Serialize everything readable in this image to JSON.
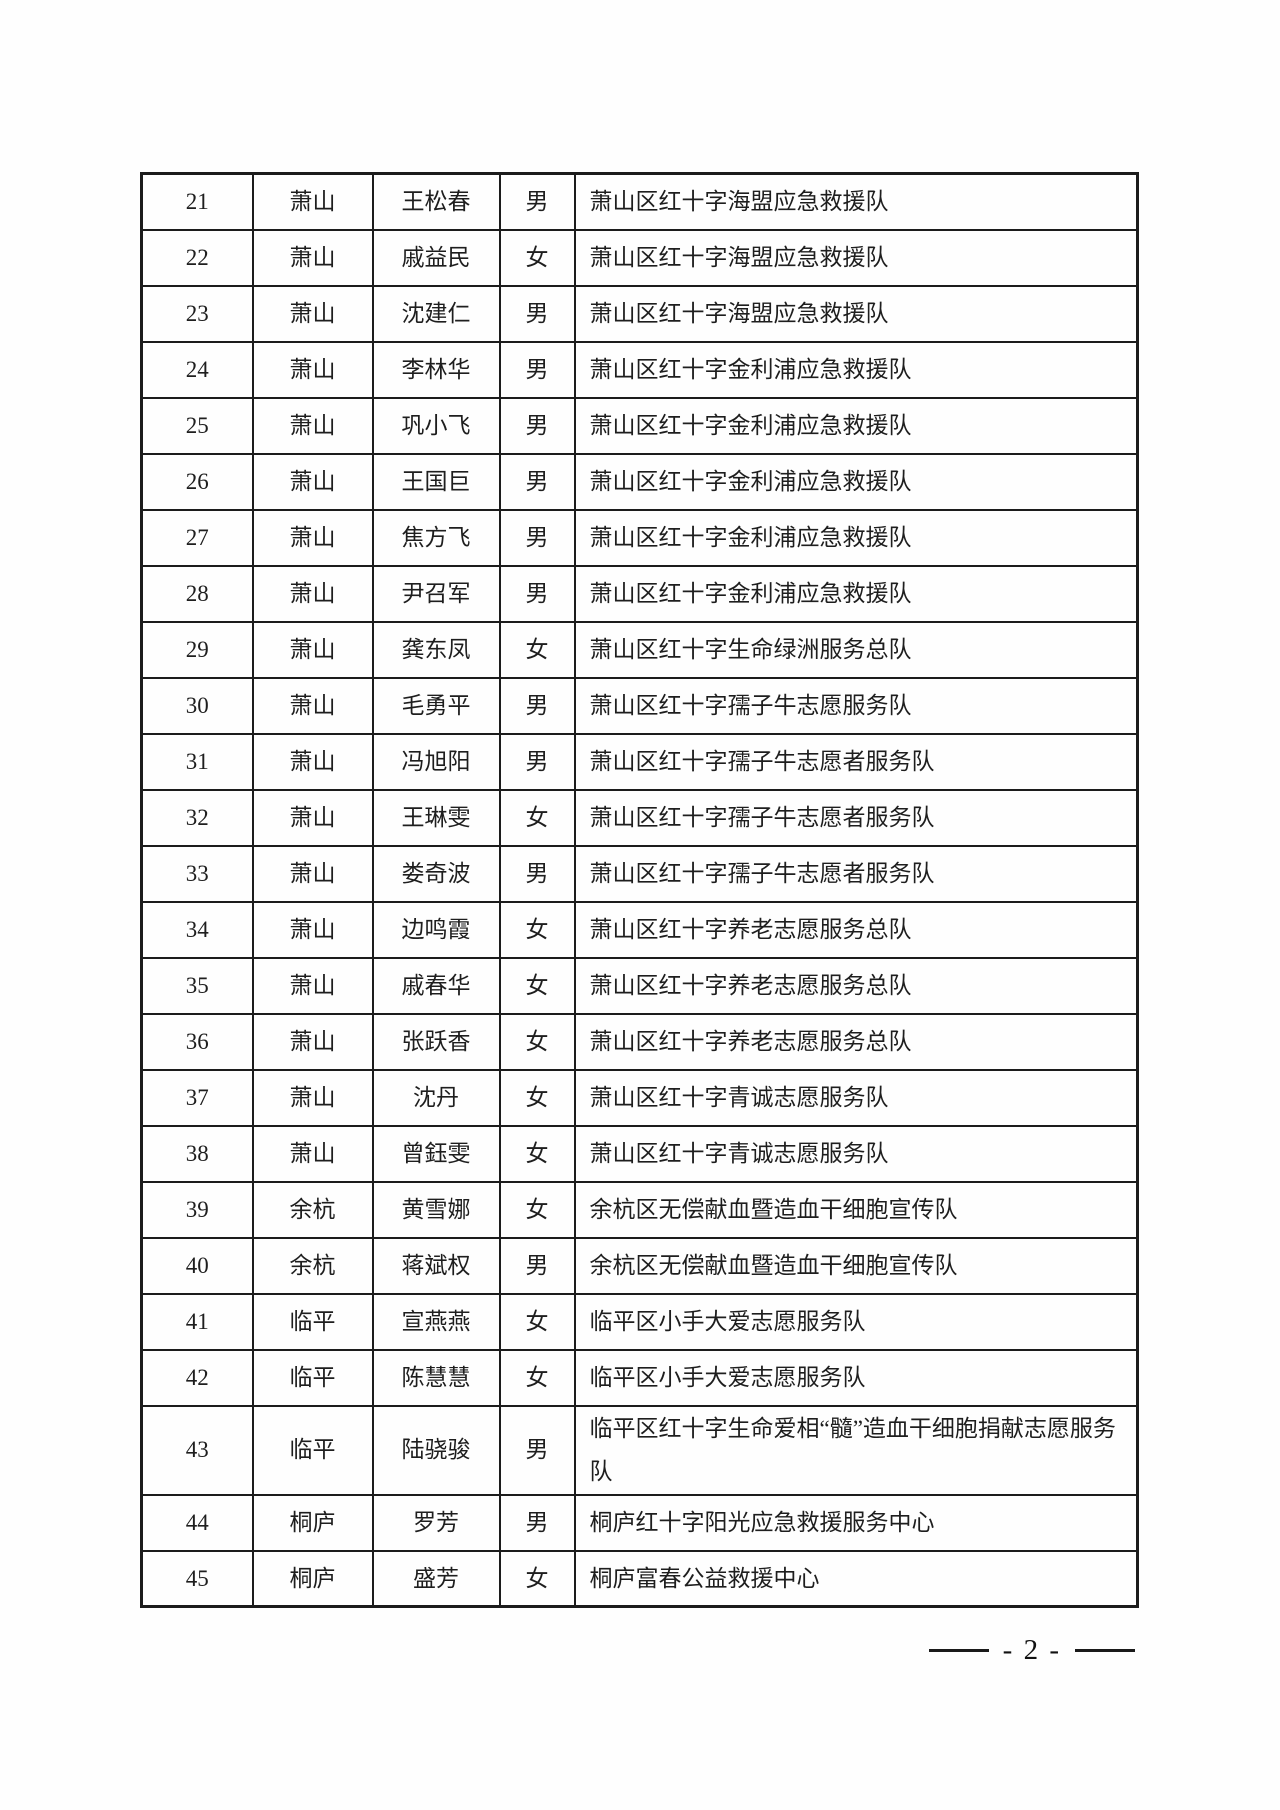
{
  "table": {
    "columns": [
      "index",
      "district",
      "name",
      "gender",
      "organization"
    ],
    "rows": [
      {
        "index": "21",
        "district": "萧山",
        "name": "王松春",
        "gender": "男",
        "organization": "萧山区红十字海盟应急救援队"
      },
      {
        "index": "22",
        "district": "萧山",
        "name": "戚益民",
        "gender": "女",
        "organization": "萧山区红十字海盟应急救援队"
      },
      {
        "index": "23",
        "district": "萧山",
        "name": "沈建仁",
        "gender": "男",
        "organization": "萧山区红十字海盟应急救援队"
      },
      {
        "index": "24",
        "district": "萧山",
        "name": "李林华",
        "gender": "男",
        "organization": "萧山区红十字金利浦应急救援队"
      },
      {
        "index": "25",
        "district": "萧山",
        "name": "巩小飞",
        "gender": "男",
        "organization": "萧山区红十字金利浦应急救援队"
      },
      {
        "index": "26",
        "district": "萧山",
        "name": "王国巨",
        "gender": "男",
        "organization": "萧山区红十字金利浦应急救援队"
      },
      {
        "index": "27",
        "district": "萧山",
        "name": "焦方飞",
        "gender": "男",
        "organization": "萧山区红十字金利浦应急救援队"
      },
      {
        "index": "28",
        "district": "萧山",
        "name": "尹召军",
        "gender": "男",
        "organization": "萧山区红十字金利浦应急救援队"
      },
      {
        "index": "29",
        "district": "萧山",
        "name": "龚东凤",
        "gender": "女",
        "organization": "萧山区红十字生命绿洲服务总队"
      },
      {
        "index": "30",
        "district": "萧山",
        "name": "毛勇平",
        "gender": "男",
        "organization": "萧山区红十字孺子牛志愿服务队"
      },
      {
        "index": "31",
        "district": "萧山",
        "name": "冯旭阳",
        "gender": "男",
        "organization": "萧山区红十字孺子牛志愿者服务队"
      },
      {
        "index": "32",
        "district": "萧山",
        "name": "王琳雯",
        "gender": "女",
        "organization": "萧山区红十字孺子牛志愿者服务队"
      },
      {
        "index": "33",
        "district": "萧山",
        "name": "娄奇波",
        "gender": "男",
        "organization": "萧山区红十字孺子牛志愿者服务队"
      },
      {
        "index": "34",
        "district": "萧山",
        "name": "边鸣霞",
        "gender": "女",
        "organization": "萧山区红十字养老志愿服务总队"
      },
      {
        "index": "35",
        "district": "萧山",
        "name": "戚春华",
        "gender": "女",
        "organization": "萧山区红十字养老志愿服务总队"
      },
      {
        "index": "36",
        "district": "萧山",
        "name": "张跃香",
        "gender": "女",
        "organization": "萧山区红十字养老志愿服务总队"
      },
      {
        "index": "37",
        "district": "萧山",
        "name": "沈丹",
        "gender": "女",
        "organization": "萧山区红十字青诚志愿服务队"
      },
      {
        "index": "38",
        "district": "萧山",
        "name": "曾鈺雯",
        "gender": "女",
        "organization": "萧山区红十字青诚志愿服务队"
      },
      {
        "index": "39",
        "district": "余杭",
        "name": "黄雪娜",
        "gender": "女",
        "organization": "余杭区无偿献血暨造血干细胞宣传队"
      },
      {
        "index": "40",
        "district": "余杭",
        "name": "蒋斌权",
        "gender": "男",
        "organization": "余杭区无偿献血暨造血干细胞宣传队"
      },
      {
        "index": "41",
        "district": "临平",
        "name": "宣燕燕",
        "gender": "女",
        "organization": "临平区小手大爱志愿服务队"
      },
      {
        "index": "42",
        "district": "临平",
        "name": "陈慧慧",
        "gender": "女",
        "organization": "临平区小手大爱志愿服务队"
      },
      {
        "index": "43",
        "district": "临平",
        "name": "陆骁骏",
        "gender": "男",
        "organization": "临平区红十字生命爱相“髓”造血干细胞捐献志愿服务队"
      },
      {
        "index": "44",
        "district": "桐庐",
        "name": "罗芳",
        "gender": "男",
        "organization": "桐庐红十字阳光应急救援服务中心"
      },
      {
        "index": "45",
        "district": "桐庐",
        "name": "盛芳",
        "gender": "女",
        "organization": "桐庐富春公益救援中心"
      }
    ]
  },
  "footer": {
    "page_number": "- 2 -"
  }
}
